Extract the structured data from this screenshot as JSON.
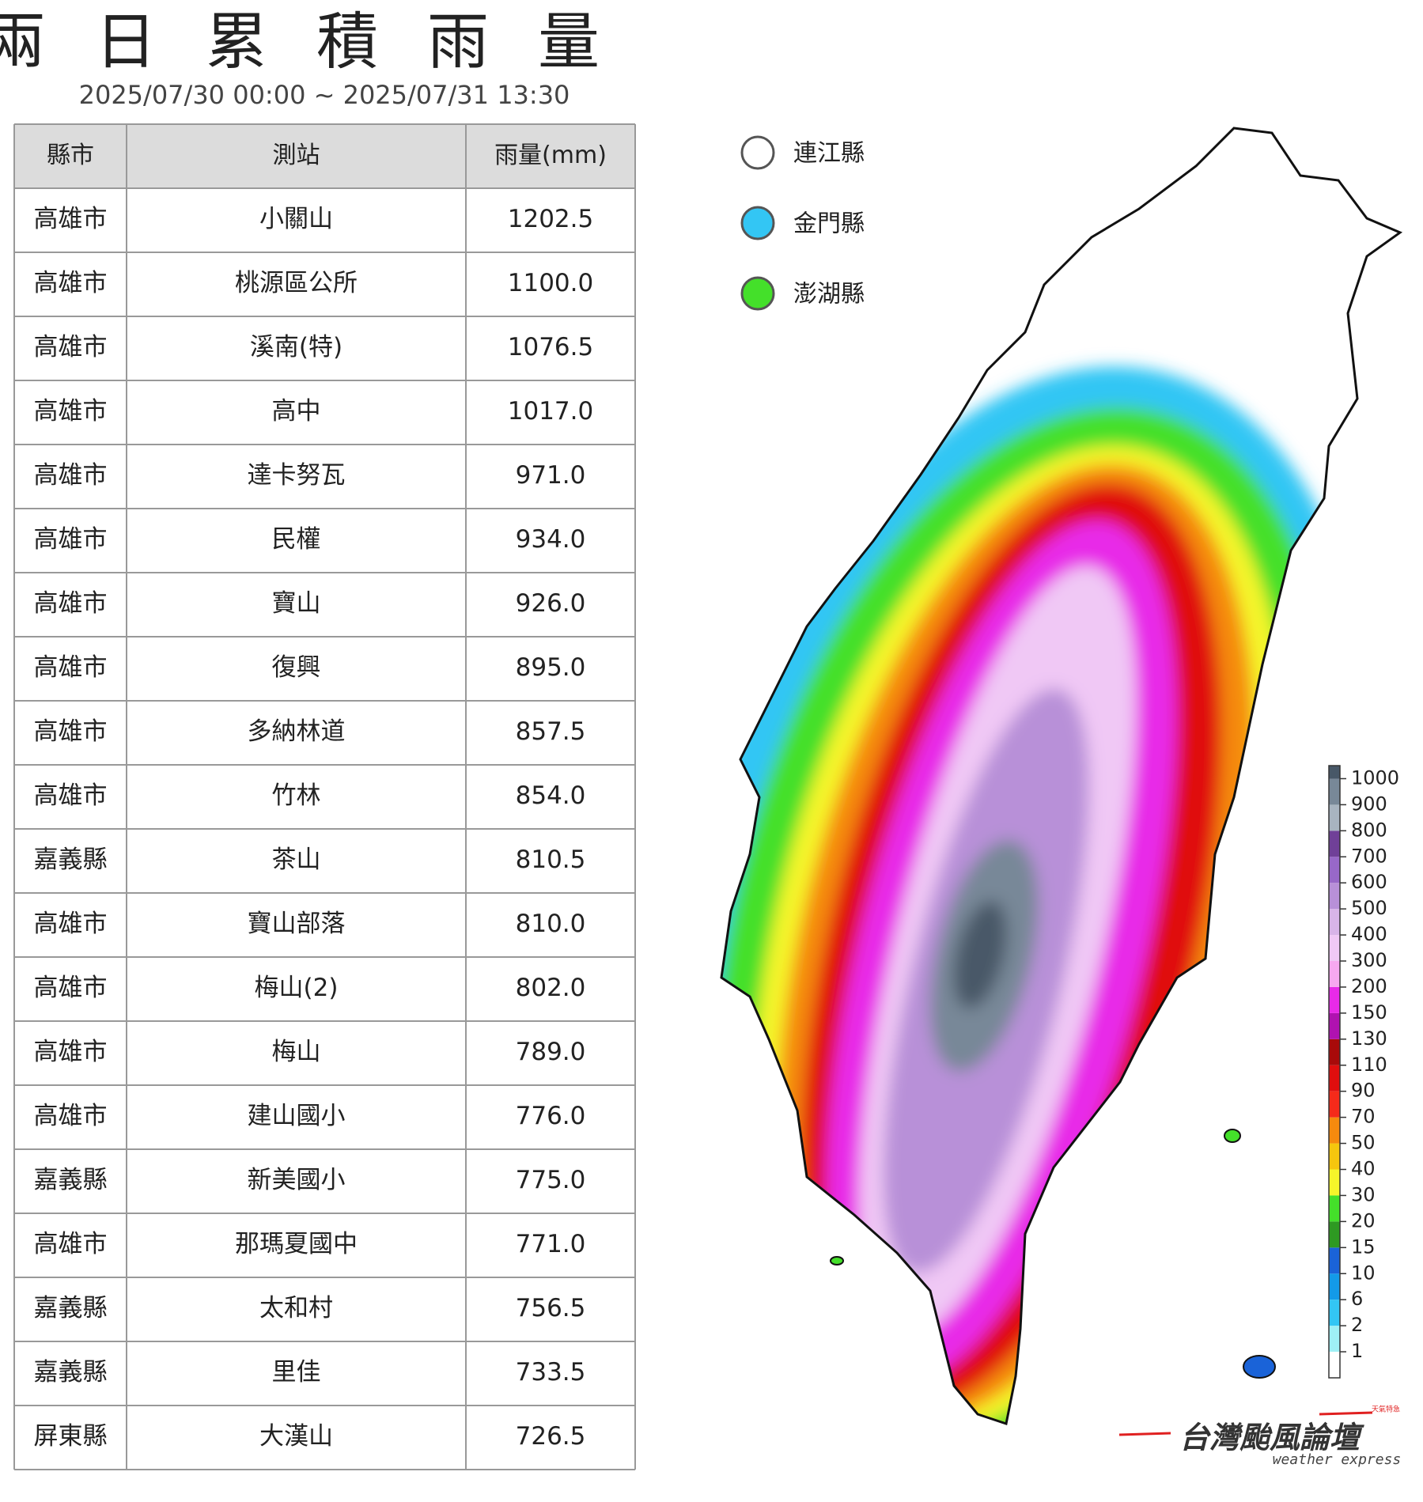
{
  "header": {
    "title": "兩日累積雨量",
    "subtitle": "2025/07/30 00:00 ~ 2025/07/31 13:30"
  },
  "table": {
    "columns": [
      "縣市",
      "測站",
      "雨量(mm)"
    ],
    "rows": [
      [
        "高雄市",
        "小關山",
        "1202.5"
      ],
      [
        "高雄市",
        "桃源區公所",
        "1100.0"
      ],
      [
        "高雄市",
        "溪南(特)",
        "1076.5"
      ],
      [
        "高雄市",
        "高中",
        "1017.0"
      ],
      [
        "高雄市",
        "達卡努瓦",
        "971.0"
      ],
      [
        "高雄市",
        "民權",
        "934.0"
      ],
      [
        "高雄市",
        "寶山",
        "926.0"
      ],
      [
        "高雄市",
        "復興",
        "895.0"
      ],
      [
        "高雄市",
        "多納林道",
        "857.5"
      ],
      [
        "高雄市",
        "竹林",
        "854.0"
      ],
      [
        "嘉義縣",
        "茶山",
        "810.5"
      ],
      [
        "高雄市",
        "寶山部落",
        "810.0"
      ],
      [
        "高雄市",
        "梅山(2)",
        "802.0"
      ],
      [
        "高雄市",
        "梅山",
        "789.0"
      ],
      [
        "高雄市",
        "建山國小",
        "776.0"
      ],
      [
        "嘉義縣",
        "新美國小",
        "775.0"
      ],
      [
        "高雄市",
        "那瑪夏國中",
        "771.0"
      ],
      [
        "嘉義縣",
        "太和村",
        "756.5"
      ],
      [
        "嘉義縣",
        "里佳",
        "733.5"
      ],
      [
        "屏東縣",
        "大漢山",
        "726.5"
      ]
    ]
  },
  "legend": [
    {
      "label": "連江縣",
      "color": "#ffffff"
    },
    {
      "label": "金門縣",
      "color": "#33c6f4"
    },
    {
      "label": "澎湖縣",
      "color": "#44e02a"
    }
  ],
  "colorbar": {
    "ticks": [
      1,
      2,
      6,
      10,
      15,
      20,
      30,
      40,
      50,
      70,
      90,
      110,
      130,
      150,
      200,
      300,
      400,
      500,
      600,
      700,
      800,
      900,
      1000
    ],
    "colors": [
      "#ffffff",
      "#9ff0f5",
      "#33c6f4",
      "#139ae8",
      "#1a63d8",
      "#2e9a22",
      "#44e02a",
      "#f5f52a",
      "#f5c60e",
      "#f58a0e",
      "#f52a1a",
      "#e00e0e",
      "#a80a0a",
      "#b012b0",
      "#e82ae8",
      "#f7a8f0",
      "#f0c8f5",
      "#d8b4e8",
      "#b890d8",
      "#9868c8",
      "#704098",
      "#a8b4c0",
      "#788898",
      "#485868"
    ]
  },
  "logo": {
    "title": "台灣颱風論壇",
    "subtitle": "weather express",
    "badge": "天氣特急"
  }
}
